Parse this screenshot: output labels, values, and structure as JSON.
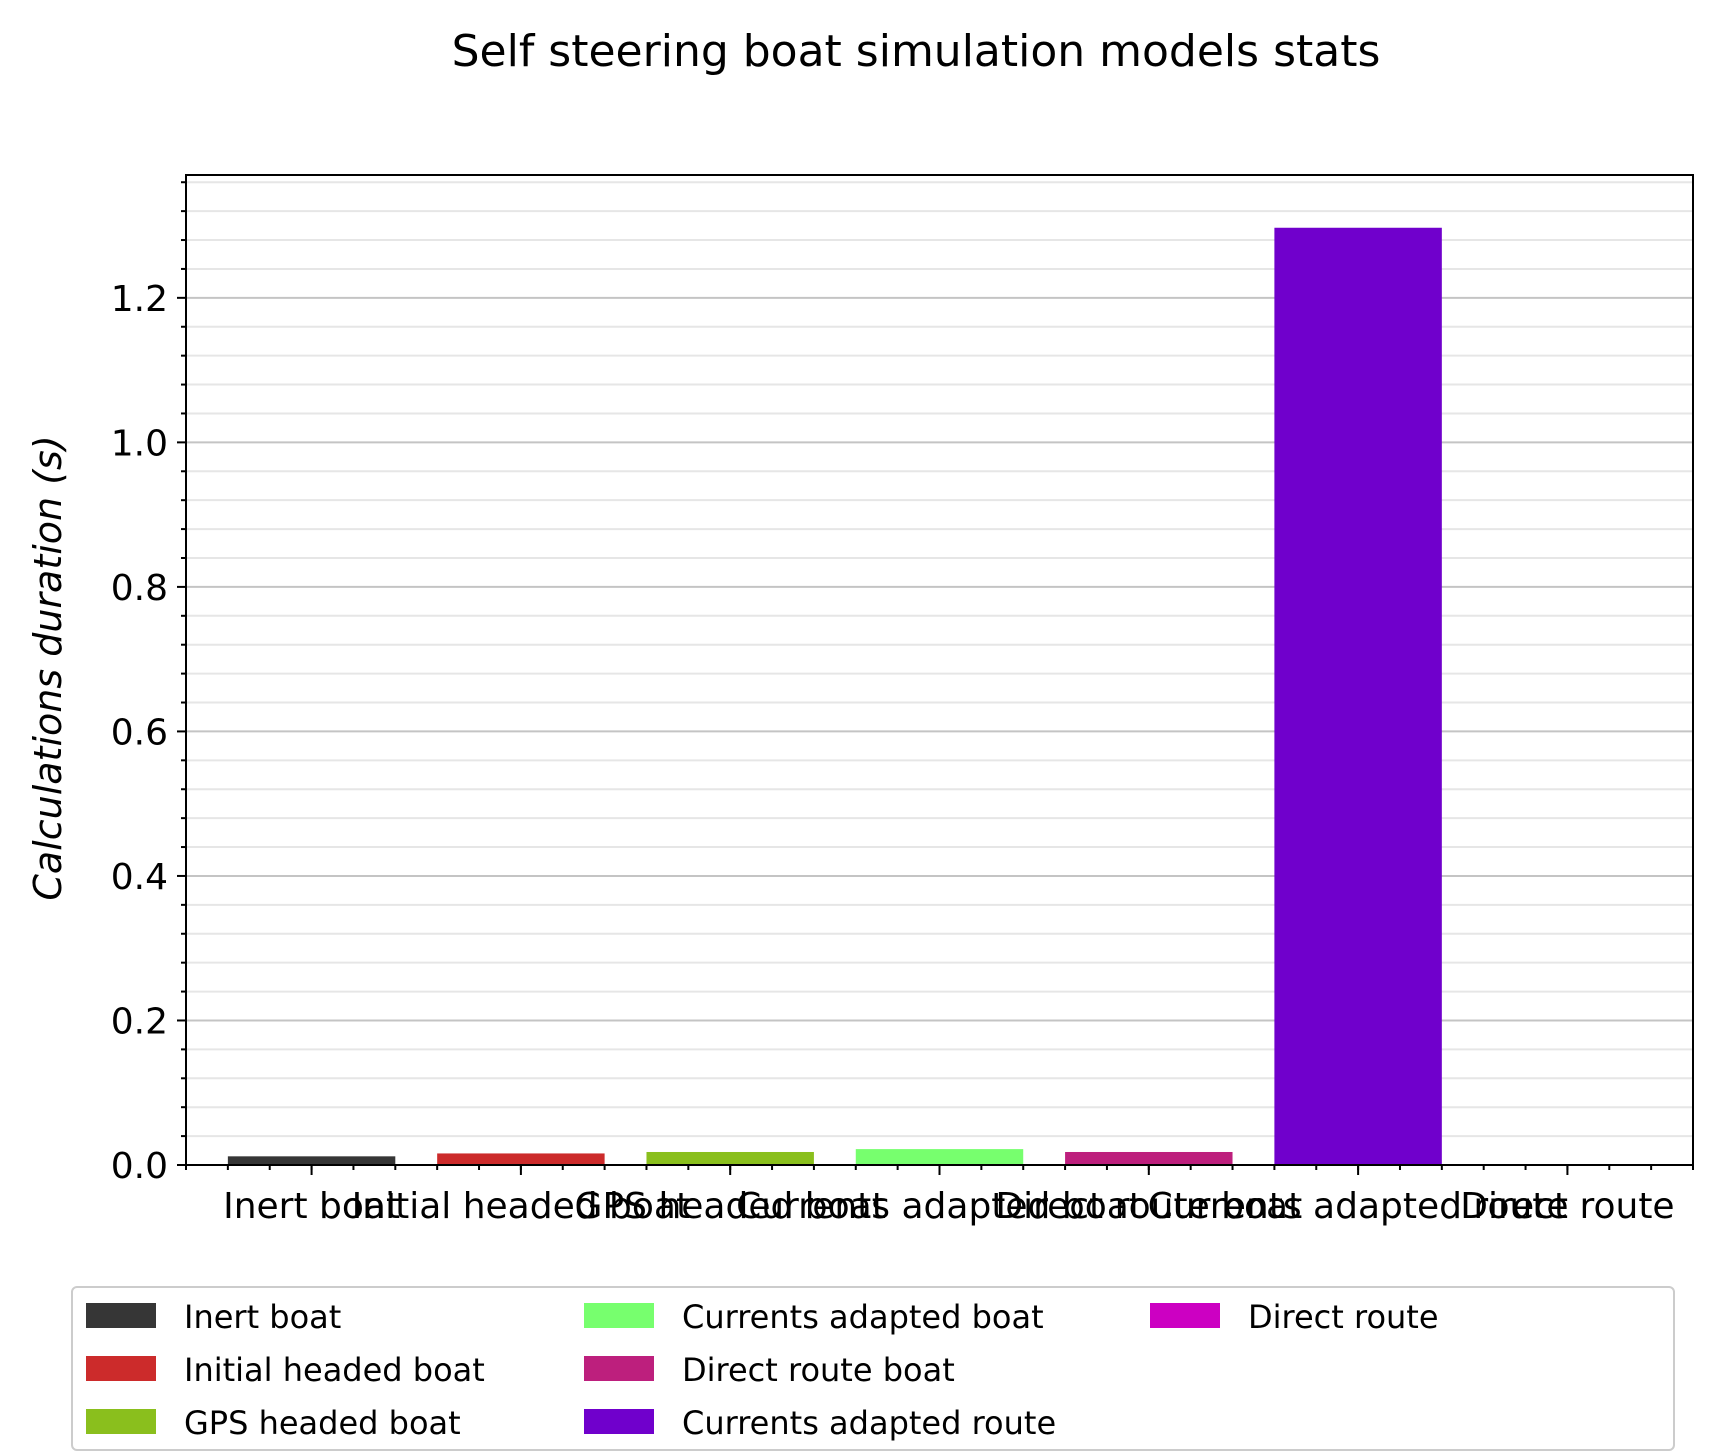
{
  "chart_data": {
    "type": "bar",
    "title": "Self steering boat simulation models stats",
    "xlabel": "",
    "ylabel": "Calculations duration (s)",
    "categories": [
      "Inert boat",
      "Initial headed boat",
      "GPS headed boat",
      "Currents adapted boat",
      "Direct route boat",
      "Currents adapted route",
      "Direct route"
    ],
    "values": [
      0.012,
      0.016,
      0.018,
      0.022,
      0.018,
      1.297,
      0.0
    ],
    "colors": [
      "#363636",
      "#cc2b2b",
      "#8abf1d",
      "#77ff6e",
      "#bd1f7d",
      "#7000cc",
      "#cc00c2"
    ],
    "ylim": [
      0,
      1.37
    ],
    "yticks": [
      0.0,
      0.2,
      0.4,
      0.6,
      0.8,
      1.0,
      1.2
    ],
    "grid": "major and minor horizontal",
    "legend": {
      "position": "bottom",
      "columns": 3,
      "entries": [
        "Inert boat",
        "Initial headed boat",
        "GPS headed boat",
        "Currents adapted boat",
        "Direct route boat",
        "Currents adapted route",
        "Direct route"
      ]
    }
  }
}
